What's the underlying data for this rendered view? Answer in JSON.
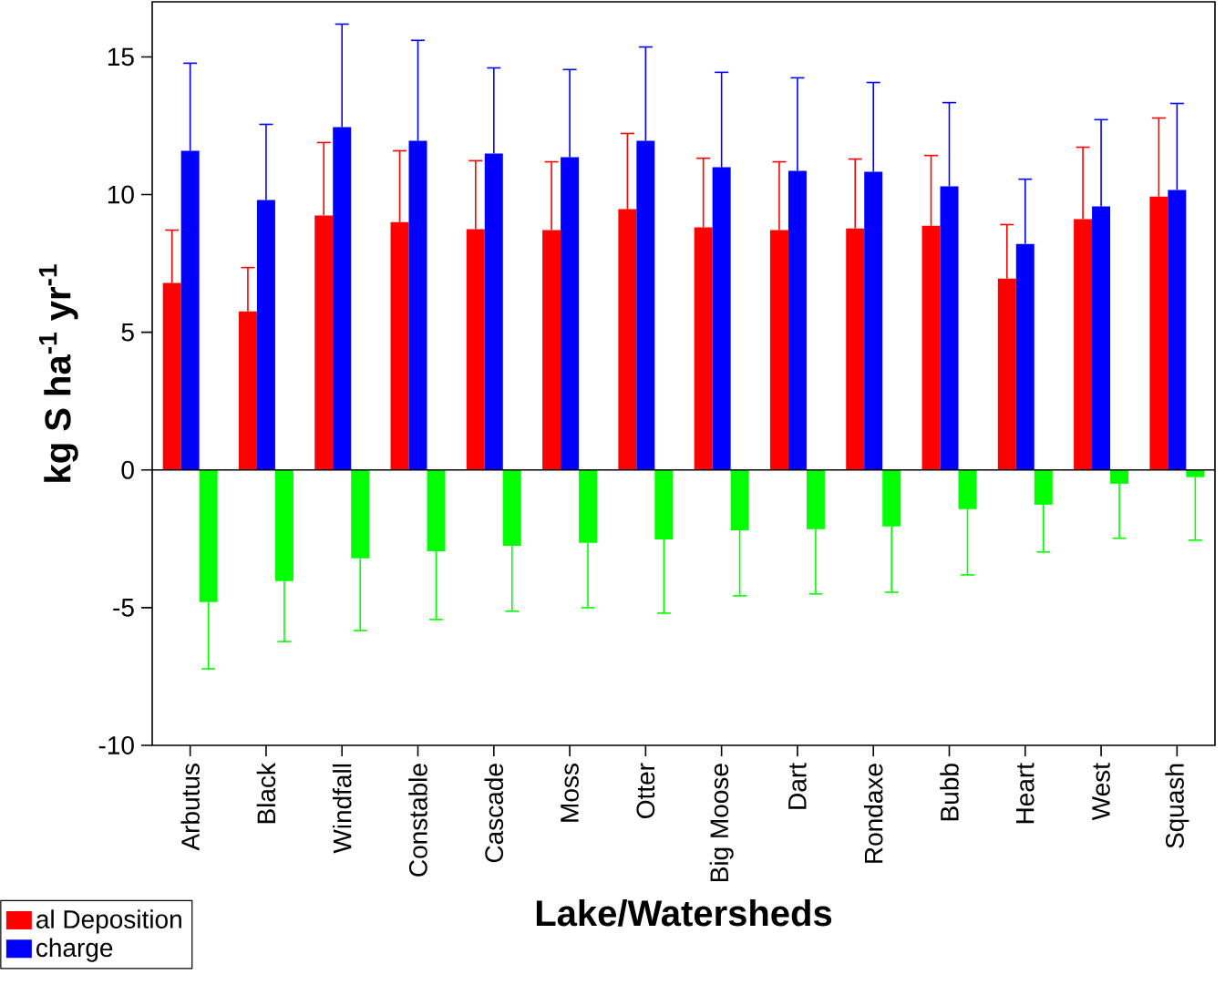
{
  "chart_data": {
    "type": "bar",
    "xlabel": "Lake/Watersheds",
    "ylabel": "kg S ha$^{-1}$ yr$^{-1}$",
    "categories": [
      "Arbutus",
      "Black",
      "Windfall",
      "Constable",
      "Cascade",
      "Moss",
      "Otter",
      "Big Moose",
      "Dart",
      "Rondaxe",
      "Bubb",
      "Heart",
      "West",
      "Squash"
    ],
    "series": [
      {
        "name": "al Deposition",
        "color": "#ff0000",
        "values": [
          6.79,
          5.76,
          9.24,
          9.0,
          8.74,
          8.71,
          9.47,
          8.81,
          8.71,
          8.77,
          8.87,
          6.95,
          9.11,
          9.93
        ],
        "errors": [
          [
            6.79,
            8.71
          ],
          [
            5.76,
            7.35
          ],
          [
            9.24,
            11.89
          ],
          [
            9.0,
            11.59
          ],
          [
            8.74,
            11.23
          ],
          [
            8.71,
            11.19
          ],
          [
            9.47,
            12.22
          ],
          [
            8.81,
            11.32
          ],
          [
            8.71,
            11.19
          ],
          [
            8.77,
            11.29
          ],
          [
            8.87,
            11.42
          ],
          [
            6.95,
            8.91
          ],
          [
            9.11,
            11.72
          ],
          [
            9.93,
            12.78
          ]
        ]
      },
      {
        "name": "charge",
        "color": "#0000ff",
        "values": [
          11.59,
          9.8,
          12.45,
          11.95,
          11.49,
          11.36,
          11.95,
          10.99,
          10.86,
          10.83,
          10.3,
          8.21,
          9.57,
          10.17
        ],
        "errors": [
          [
            11.59,
            14.77
          ],
          [
            9.8,
            12.55
          ],
          [
            12.45,
            16.19
          ],
          [
            11.95,
            15.6
          ],
          [
            11.49,
            14.6
          ],
          [
            11.36,
            14.54
          ],
          [
            11.95,
            15.36
          ],
          [
            10.99,
            14.44
          ],
          [
            10.86,
            14.24
          ],
          [
            10.83,
            14.07
          ],
          [
            10.3,
            13.34
          ],
          [
            8.21,
            10.56
          ],
          [
            9.57,
            12.72
          ],
          [
            10.17,
            13.31
          ]
        ]
      },
      {
        "color": "#00ff00",
        "values": [
          -4.8,
          -4.04,
          -3.21,
          -2.95,
          -2.75,
          -2.65,
          -2.52,
          -2.19,
          -2.15,
          -2.05,
          -1.42,
          -1.26,
          -0.5,
          -0.26
        ],
        "errors": [
          [
            -7.22,
            -4.8
          ],
          [
            -6.23,
            -4.04
          ],
          [
            -5.83,
            -3.21
          ],
          [
            -5.43,
            -2.95
          ],
          [
            -5.13,
            -2.75
          ],
          [
            -5.0,
            -2.65
          ],
          [
            -5.2,
            -2.52
          ],
          [
            -4.57,
            -2.19
          ],
          [
            -4.5,
            -2.15
          ],
          [
            -4.44,
            -2.05
          ],
          [
            -3.81,
            -1.42
          ],
          [
            -2.98,
            -1.26
          ],
          [
            -2.48,
            -0.5
          ],
          [
            -2.55,
            -0.26
          ]
        ]
      }
    ],
    "ylim": [
      -10,
      17
    ],
    "yticks": [
      -10,
      -5,
      0,
      5,
      10,
      15
    ],
    "ref_lines": [
      {
        "axis": "y",
        "value": 0,
        "color": "#000000"
      }
    ],
    "grid": false,
    "legend": "bottom left"
  }
}
